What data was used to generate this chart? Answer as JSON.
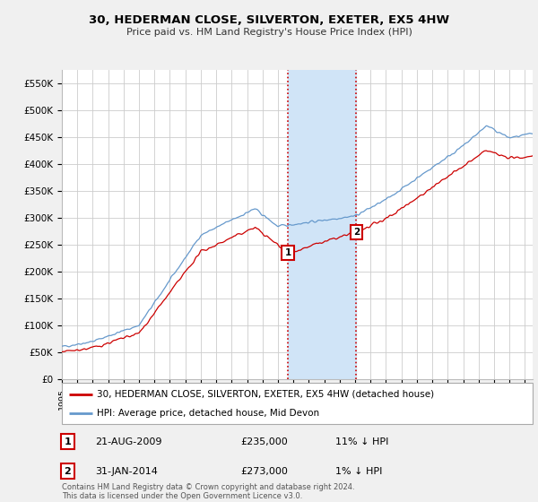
{
  "title": "30, HEDERMAN CLOSE, SILVERTON, EXETER, EX5 4HW",
  "subtitle": "Price paid vs. HM Land Registry's House Price Index (HPI)",
  "ylim": [
    0,
    575000
  ],
  "yticks": [
    0,
    50000,
    100000,
    150000,
    200000,
    250000,
    300000,
    350000,
    400000,
    450000,
    500000,
    550000
  ],
  "ytick_labels": [
    "£0",
    "£50K",
    "£100K",
    "£150K",
    "£200K",
    "£250K",
    "£300K",
    "£350K",
    "£400K",
    "£450K",
    "£500K",
    "£550K"
  ],
  "sale1": {
    "date": "21-AUG-2009",
    "price": 235000,
    "hpi_diff": "11% ↓ HPI",
    "label": "1",
    "x_year": 2009.64
  },
  "sale2": {
    "date": "31-JAN-2014",
    "price": 273000,
    "hpi_diff": "1% ↓ HPI",
    "label": "2",
    "x_year": 2014.08
  },
  "shade_color": "#d0e4f7",
  "line1_color": "#cc0000",
  "line2_color": "#6699cc",
  "legend1_label": "30, HEDERMAN CLOSE, SILVERTON, EXETER, EX5 4HW (detached house)",
  "legend2_label": "HPI: Average price, detached house, Mid Devon",
  "footer": "Contains HM Land Registry data © Crown copyright and database right 2024.\nThis data is licensed under the Open Government Licence v3.0.",
  "bg_color": "#f0f0f0",
  "plot_bg": "#ffffff",
  "grid_color": "#cccccc",
  "xlim_start": 1995,
  "xlim_end": 2025.5
}
